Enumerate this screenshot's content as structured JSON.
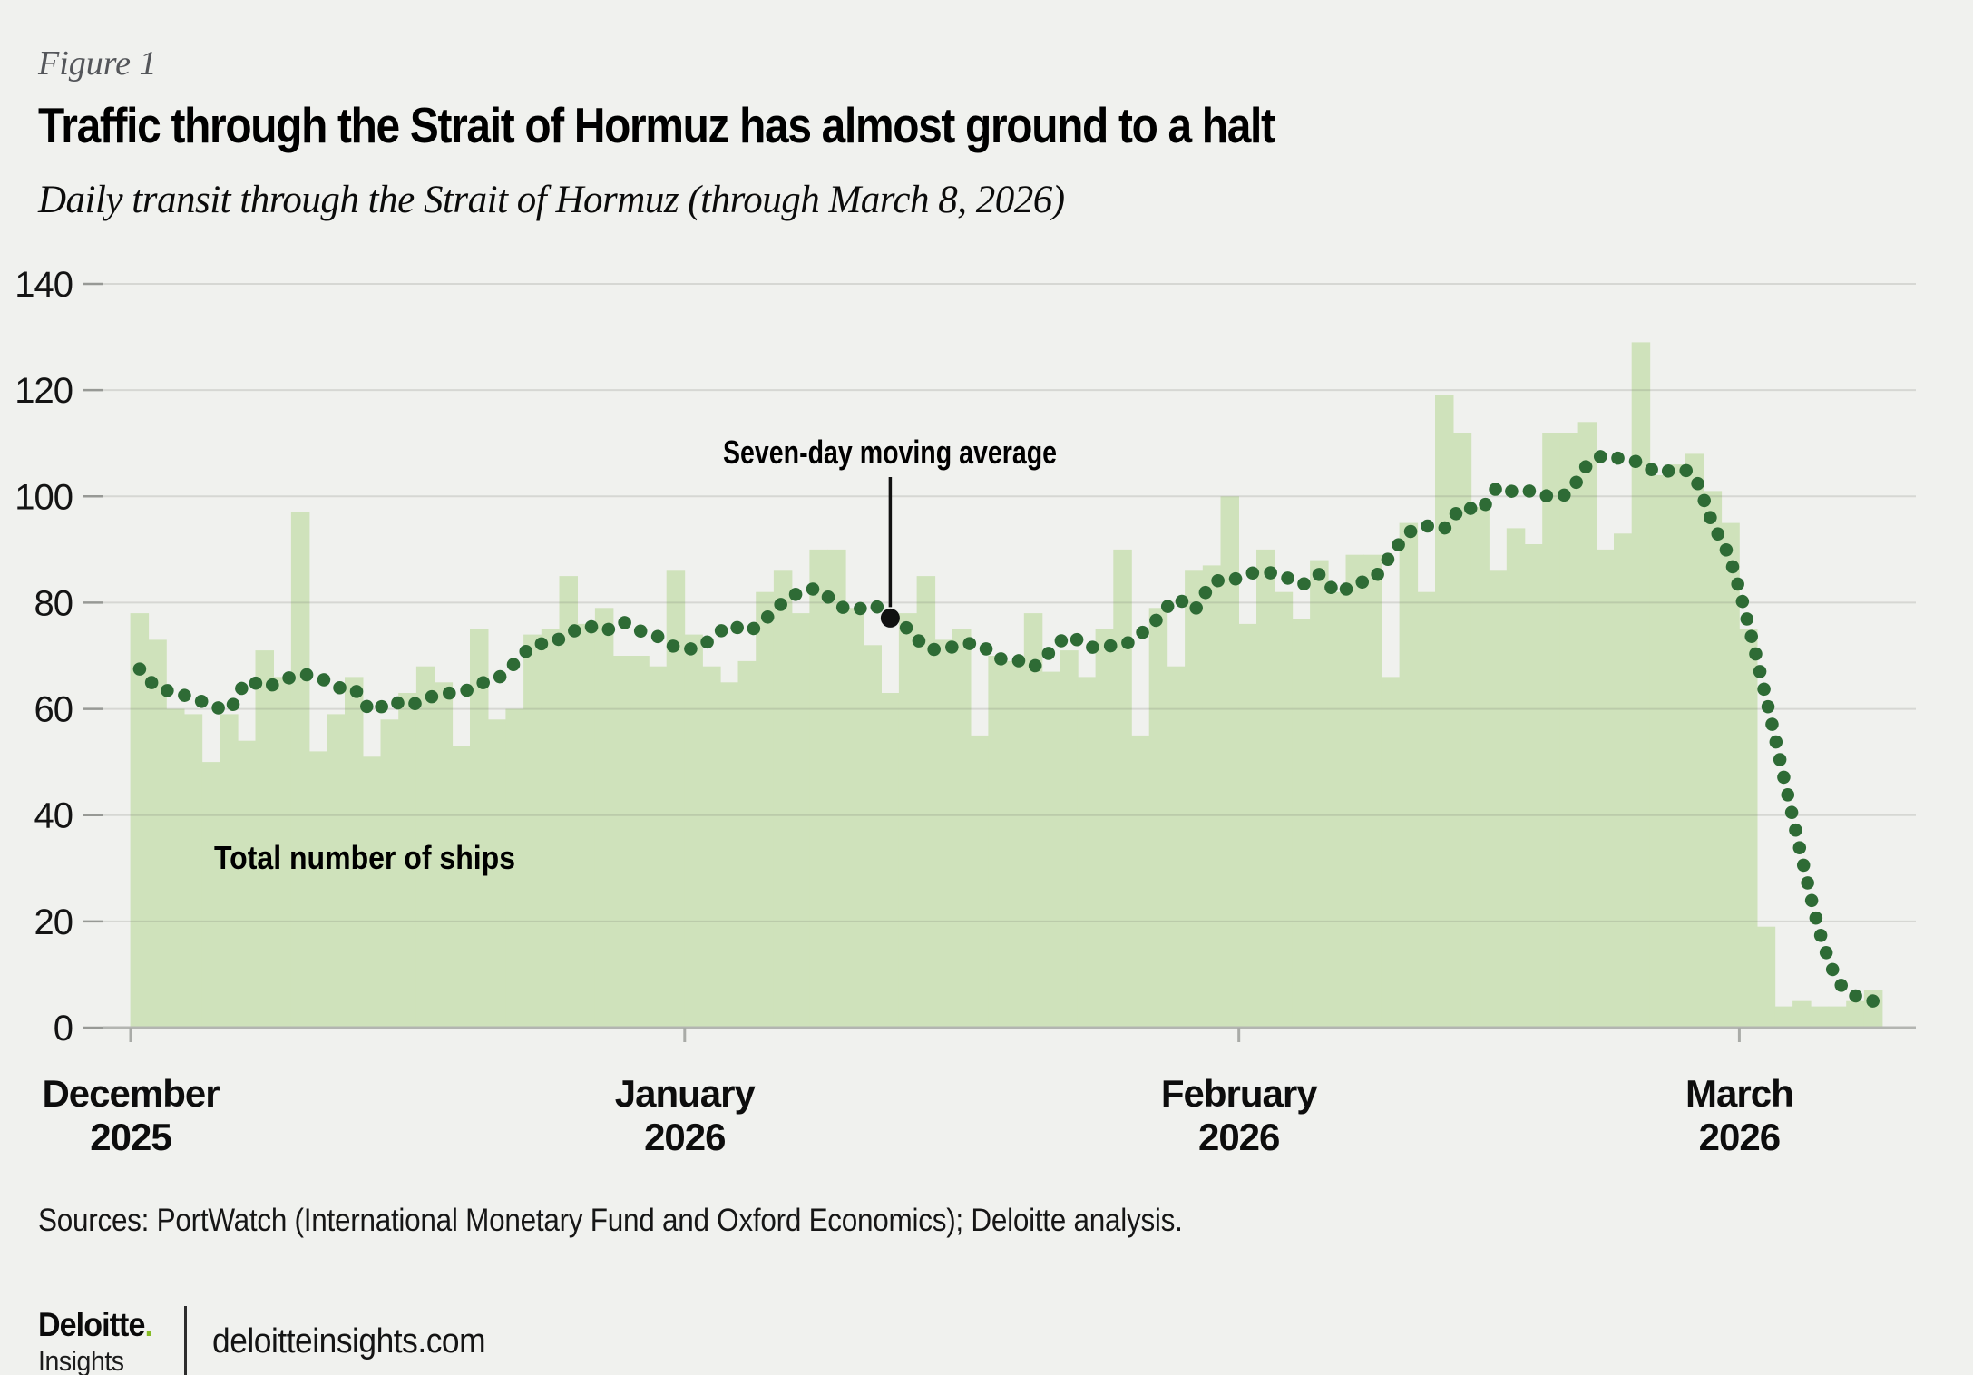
{
  "figure_label": "Figure 1",
  "title": "Traffic through the Strait of Hormuz has almost ground to a halt",
  "subtitle": "Daily transit through the Strait of Hormuz (through March 8, 2026)",
  "source_note": "Sources: PortWatch (International Monetary Fund and Oxford Economics); Deloitte analysis.",
  "footer": {
    "brand": "Deloitte",
    "brand_dot": ".",
    "brand_sub": "Insights",
    "site": "deloitteinsights.com"
  },
  "colors": {
    "background": "#f0f1ee",
    "bar_green": "#cfe2bb",
    "dot_green": "#2e6b35",
    "deloitte_green": "#86bc25",
    "annotation_black": "#111111"
  },
  "chart_data": {
    "type": "bar",
    "title": "Daily transit through the Strait of Hormuz",
    "x_start_date": "2025-12-01",
    "x_end_date": "2026-03-08",
    "x_days": 98,
    "x_tick_labels": [
      [
        "December",
        "2025"
      ],
      [
        "January",
        "2026"
      ],
      [
        "February",
        "2026"
      ],
      [
        "March",
        "2026"
      ]
    ],
    "x_tick_day_index": [
      0,
      31,
      62,
      90
    ],
    "ylim": [
      0,
      140
    ],
    "y_ticks": [
      0,
      20,
      40,
      60,
      80,
      100,
      120,
      140
    ],
    "grid": true,
    "legend_position": "annotated-in-plot",
    "series": [
      {
        "name": "Total number of ships",
        "type": "bar",
        "values": [
          78,
          73,
          60,
          59,
          50,
          59,
          54,
          71,
          66,
          97,
          52,
          59,
          66,
          51,
          58,
          63,
          68,
          65,
          53,
          75,
          58,
          60,
          74,
          75,
          85,
          76,
          79,
          70,
          70,
          68,
          86,
          74,
          68,
          65,
          69,
          82,
          86,
          78,
          90,
          90,
          79,
          72,
          63,
          78,
          85,
          73,
          75,
          55,
          70,
          69,
          78,
          67,
          71,
          66,
          75,
          90,
          55,
          79,
          68,
          86,
          87,
          100,
          76,
          90,
          82,
          77,
          88,
          82,
          89,
          89,
          66,
          95,
          82,
          119,
          112,
          98,
          86,
          94,
          91,
          112,
          112,
          114,
          90,
          93,
          129,
          104,
          106,
          108,
          101,
          95,
          75,
          19,
          4,
          5,
          4,
          4,
          5,
          7
        ]
      },
      {
        "name": "Seven-day moving average",
        "type": "dotted-line",
        "values": [
          67.5,
          64,
          63.2,
          61.9,
          60.9,
          59.9,
          65.1,
          64.1,
          65.4,
          66.4,
          66,
          64.1,
          63.7,
          59.6,
          61.4,
          60.6,
          61.9,
          62.9,
          63.1,
          64.7,
          65.7,
          68.6,
          71.9,
          72.4,
          74.1,
          75.6,
          74.7,
          76.3,
          74.7,
          73.6,
          71.6,
          71.4,
          73.1,
          75.7,
          74.6,
          76.9,
          80,
          82,
          82.4,
          79.7,
          78.6,
          79.6,
          77.1,
          75,
          71.6,
          71.3,
          72.1,
          72.1,
          69.6,
          69.3,
          68,
          70.9,
          73.7,
          71.7,
          71.9,
          72,
          74.1,
          77.1,
          80.7,
          78.7,
          83.7,
          84.1,
          85.4,
          85.7,
          85,
          83.4,
          85.3,
          81.9,
          83.7,
          84.4,
          88.9,
          93.1,
          94.4,
          94,
          98,
          97.4,
          101.7,
          100.7,
          101,
          99.9,
          100.9,
          105.9,
          107.7,
          106.9,
          106.3,
          104.4,
          105.1,
          103.5,
          95,
          88,
          76,
          62,
          47,
          32,
          18,
          9,
          6,
          5
        ]
      }
    ],
    "annotations": [
      {
        "text": "Seven-day moving average",
        "day_index": 42,
        "points_to_value": 77.1
      }
    ]
  }
}
